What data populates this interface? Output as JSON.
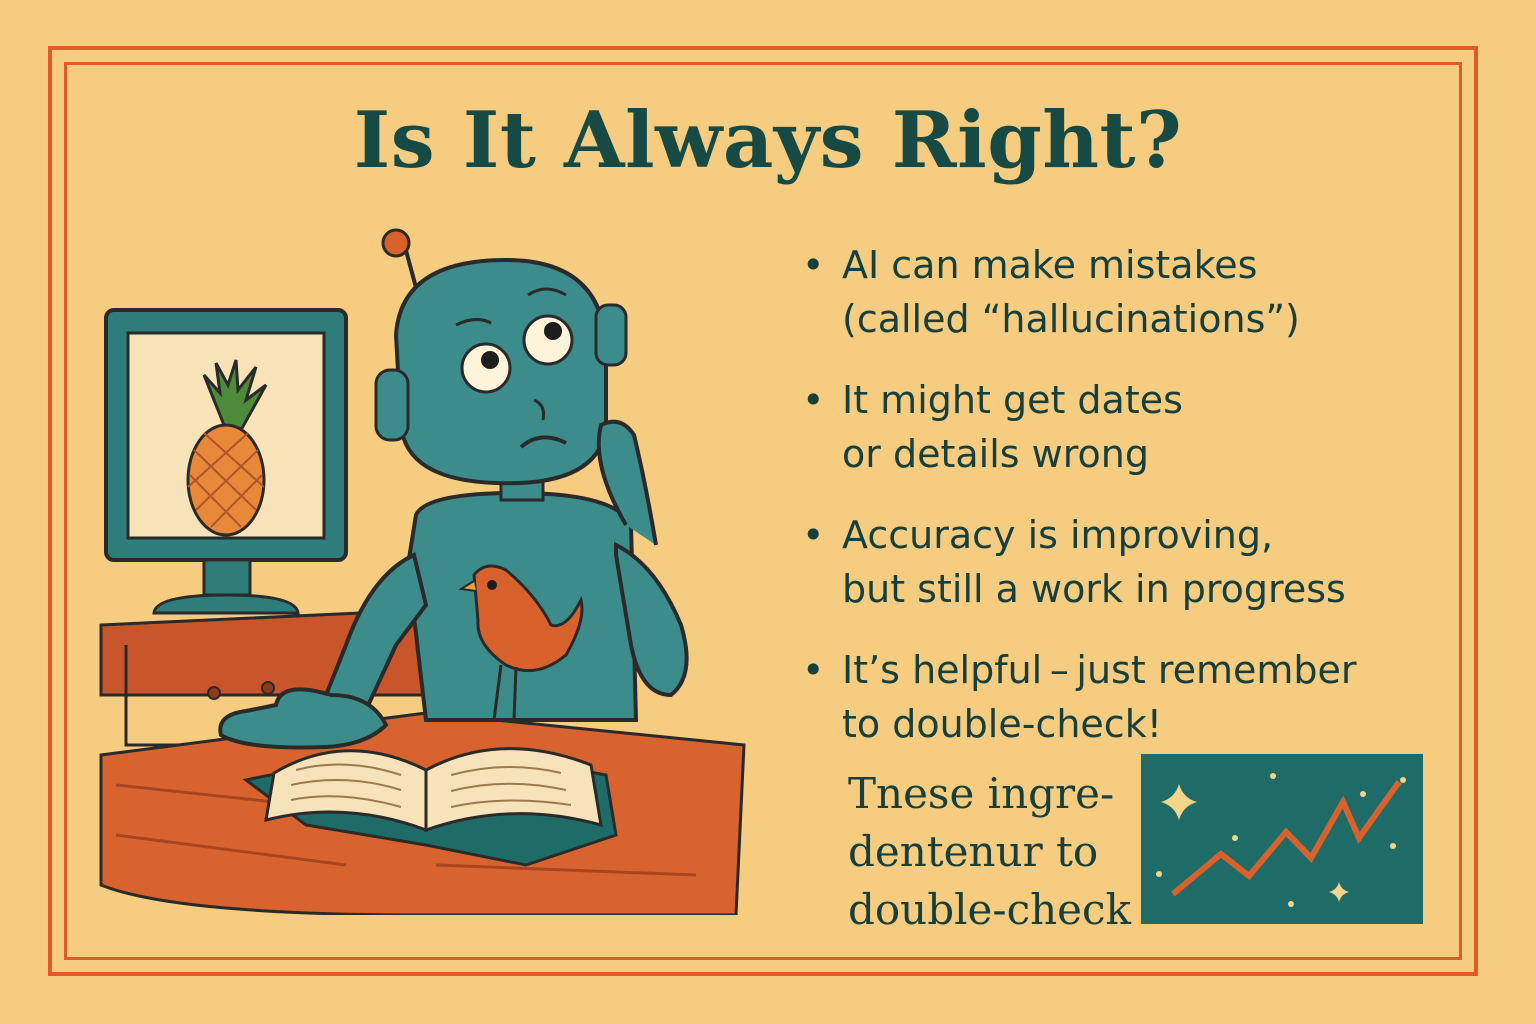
{
  "title": "Is It Always Right?",
  "bullets": [
    {
      "text": "AI can make mistakes\n(called “hallucinations”)"
    },
    {
      "text": "It might get dates\nor details wrong"
    },
    {
      "text": "Accuracy is improving,\nbut still a work in progress"
    },
    {
      "text": "It’s helpful – just remember\nto double-check!"
    }
  ],
  "bullet_symbol": "•",
  "caption": "Tnese ingre-\ndentenur to\ndouble-check",
  "icons": [
    "robot-icon",
    "monitor-icon",
    "pineapple-icon",
    "bird-icon",
    "book-icon",
    "sparkle-icon",
    "trend-line-icon"
  ],
  "colors": {
    "background": "#f6cc80",
    "frame": "#df5b2a",
    "text": "#173f3b",
    "robot": "#3d8c8c",
    "accent_orange": "#d9622c",
    "panel_teal": "#1f6b68"
  }
}
